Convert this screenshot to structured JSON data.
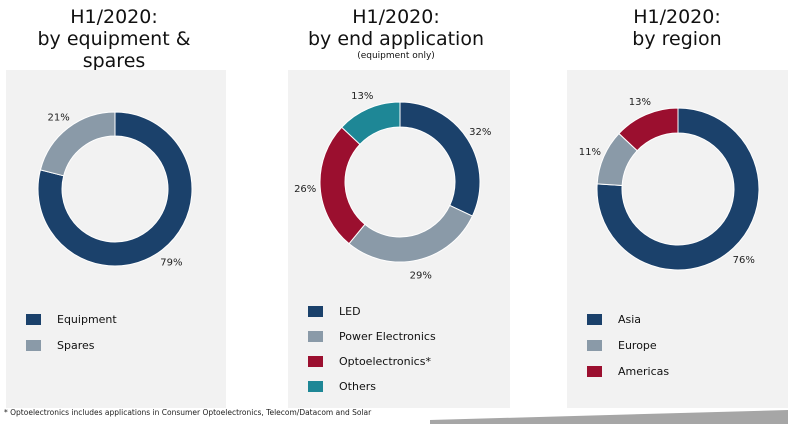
{
  "colors": {
    "navy": "#1b416b",
    "gray": "#8a9aa8",
    "crimson": "#9b0f2f",
    "teal": "#1e8796"
  },
  "chart_data": [
    {
      "type": "pie",
      "title_line1": "H1/2020:",
      "title_line2": "by equipment & spares",
      "subtitle": "",
      "labels": [
        "Equipment",
        "Spares"
      ],
      "values": [
        79,
        21
      ],
      "value_labels": [
        "79%",
        "21%"
      ],
      "colors": [
        "#1b416b",
        "#8a9aa8"
      ],
      "legend_placement": "bottom-left"
    },
    {
      "type": "pie",
      "title_line1": "H1/2020:",
      "title_line2": "by end application",
      "subtitle": "(equipment only)",
      "labels": [
        "LED",
        "Power Electronics",
        "Optoelectronics*",
        "Others"
      ],
      "values": [
        32,
        29,
        26,
        13
      ],
      "value_labels": [
        "32%",
        "29%",
        "26%",
        "13%"
      ],
      "colors": [
        "#1b416b",
        "#8a9aa8",
        "#9b0f2f",
        "#1e8796"
      ],
      "legend_placement": "bottom-left"
    },
    {
      "type": "pie",
      "title_line1": "H1/2020:",
      "title_line2": "by region",
      "subtitle": "",
      "labels": [
        "Asia",
        "Europe",
        "Americas"
      ],
      "values": [
        76,
        11,
        13
      ],
      "value_labels": [
        "76%",
        "11%",
        "13%"
      ],
      "colors": [
        "#1b416b",
        "#8a9aa8",
        "#9b0f2f"
      ],
      "legend_placement": "bottom-left"
    }
  ],
  "footnote": "* Optoelectronics includes applications in Consumer Optoelectronics, Telecom/Datacom and Solar"
}
